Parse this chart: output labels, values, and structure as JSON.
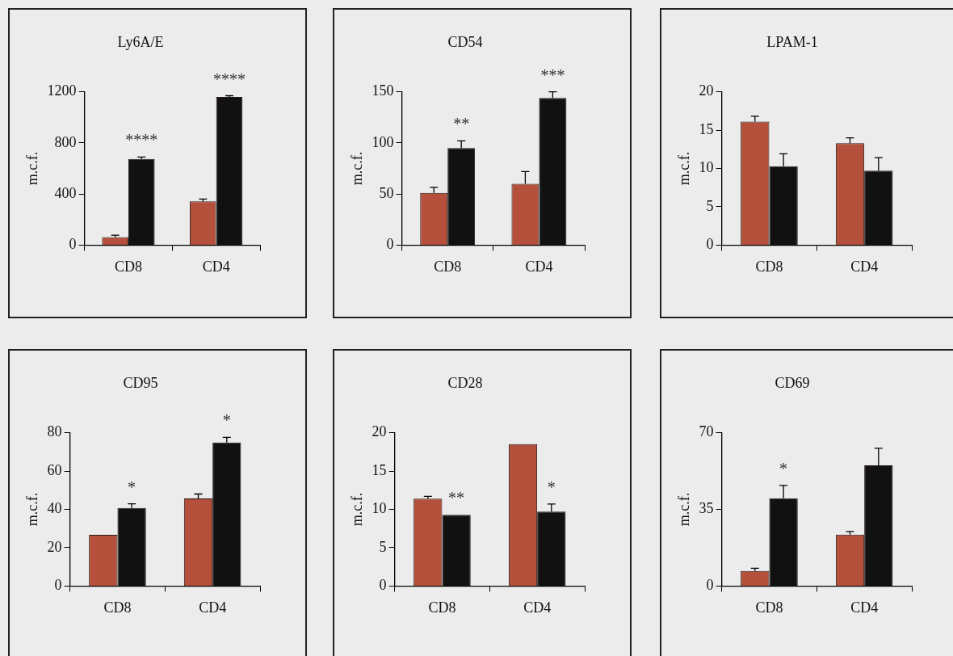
{
  "chart_data": [
    {
      "type": "bar",
      "title": "Ly6A/E",
      "ylabel": "m.c.f.",
      "categories": [
        "CD8",
        "CD4"
      ],
      "series": [
        {
          "color": "#b4503c",
          "values": [
            63,
            343
          ],
          "errors": [
            15,
            18
          ]
        },
        {
          "color": "#111111",
          "values": [
            675,
            1159
          ],
          "errors": [
            14,
            10
          ]
        }
      ],
      "ylim": [
        0,
        1200
      ],
      "yticks": [
        0,
        400,
        800,
        1200
      ],
      "grid": false,
      "legend": false,
      "annotations": [
        {
          "text": "****",
          "x": "CD8",
          "y": 675
        },
        {
          "text": "****",
          "x": "CD4",
          "y": 1159
        }
      ]
    },
    {
      "type": "bar",
      "title": "CD54",
      "ylabel": "m.c.f.",
      "categories": [
        "CD8",
        "CD4"
      ],
      "series": [
        {
          "color": "#b4503c",
          "values": [
            51,
            60
          ],
          "errors": [
            5.5,
            12
          ]
        },
        {
          "color": "#111111",
          "values": [
            95,
            144
          ],
          "errors": [
            7,
            6
          ]
        }
      ],
      "ylim": [
        0,
        150
      ],
      "yticks": [
        0,
        50,
        100,
        150
      ],
      "grid": false,
      "legend": false,
      "annotations": [
        {
          "text": "**",
          "x": "CD8",
          "y": 95
        },
        {
          "text": "***",
          "x": "CD4",
          "y": 144
        }
      ]
    },
    {
      "type": "bar",
      "title": "LPAM-1",
      "ylabel": "m.c.f.",
      "categories": [
        "CD8",
        "CD4"
      ],
      "series": [
        {
          "color": "#b4503c",
          "values": [
            16.1,
            13.3
          ],
          "errors": [
            0.7,
            0.7
          ]
        },
        {
          "color": "#111111",
          "values": [
            10.3,
            9.7
          ],
          "errors": [
            1.6,
            1.7
          ]
        }
      ],
      "ylim": [
        0,
        20
      ],
      "yticks": [
        0,
        5,
        10,
        15,
        20
      ],
      "grid": false,
      "legend": false
    },
    {
      "type": "bar",
      "title": "CD95",
      "ylabel": "m.c.f.",
      "categories": [
        "CD8",
        "CD4"
      ],
      "series": [
        {
          "color": "#b4503c",
          "values": [
            26.7,
            45.7
          ],
          "errors": [
            null,
            2.3
          ]
        },
        {
          "color": "#111111",
          "values": [
            40.7,
            74.9
          ],
          "errors": [
            2.2,
            2.7
          ]
        }
      ],
      "ylim": [
        0,
        80
      ],
      "yticks": [
        0,
        20,
        40,
        60,
        80
      ],
      "grid": false,
      "legend": false,
      "annotations": [
        {
          "text": "*",
          "x": "CD8",
          "y": 40.7
        },
        {
          "text": "*",
          "x": "CD4",
          "y": 74.9
        }
      ]
    },
    {
      "type": "bar",
      "title": "CD28",
      "ylabel": "m.c.f.",
      "categories": [
        "CD8",
        "CD4"
      ],
      "series": [
        {
          "color": "#b4503c",
          "values": [
            11.4,
            18.5
          ],
          "errors": [
            0.3,
            null
          ]
        },
        {
          "color": "#111111",
          "values": [
            9.3,
            9.7
          ],
          "errors": [
            null,
            1.0
          ]
        }
      ],
      "ylim": [
        0,
        20
      ],
      "yticks": [
        0,
        5,
        10,
        15,
        20
      ],
      "grid": false,
      "legend": false,
      "annotations": [
        {
          "text": "**",
          "x": "CD8",
          "y": 9.3
        },
        {
          "text": "*",
          "x": "CD4",
          "y": 9.7
        }
      ]
    },
    {
      "type": "bar",
      "title": "CD69",
      "ylabel": "m.c.f.",
      "categories": [
        "CD8",
        "CD4"
      ],
      "series": [
        {
          "color": "#b4503c",
          "values": [
            6.9,
            23.5
          ],
          "errors": [
            1.2,
            1.4
          ]
        },
        {
          "color": "#111111",
          "values": [
            40.1,
            55.1
          ],
          "errors": [
            5.8,
            7.8
          ]
        }
      ],
      "ylim": [
        0,
        70
      ],
      "yticks": [
        0,
        35,
        70
      ],
      "grid": false,
      "legend": false,
      "annotations": [
        {
          "text": "*",
          "x": "CD8",
          "y": 40.1
        }
      ]
    }
  ]
}
